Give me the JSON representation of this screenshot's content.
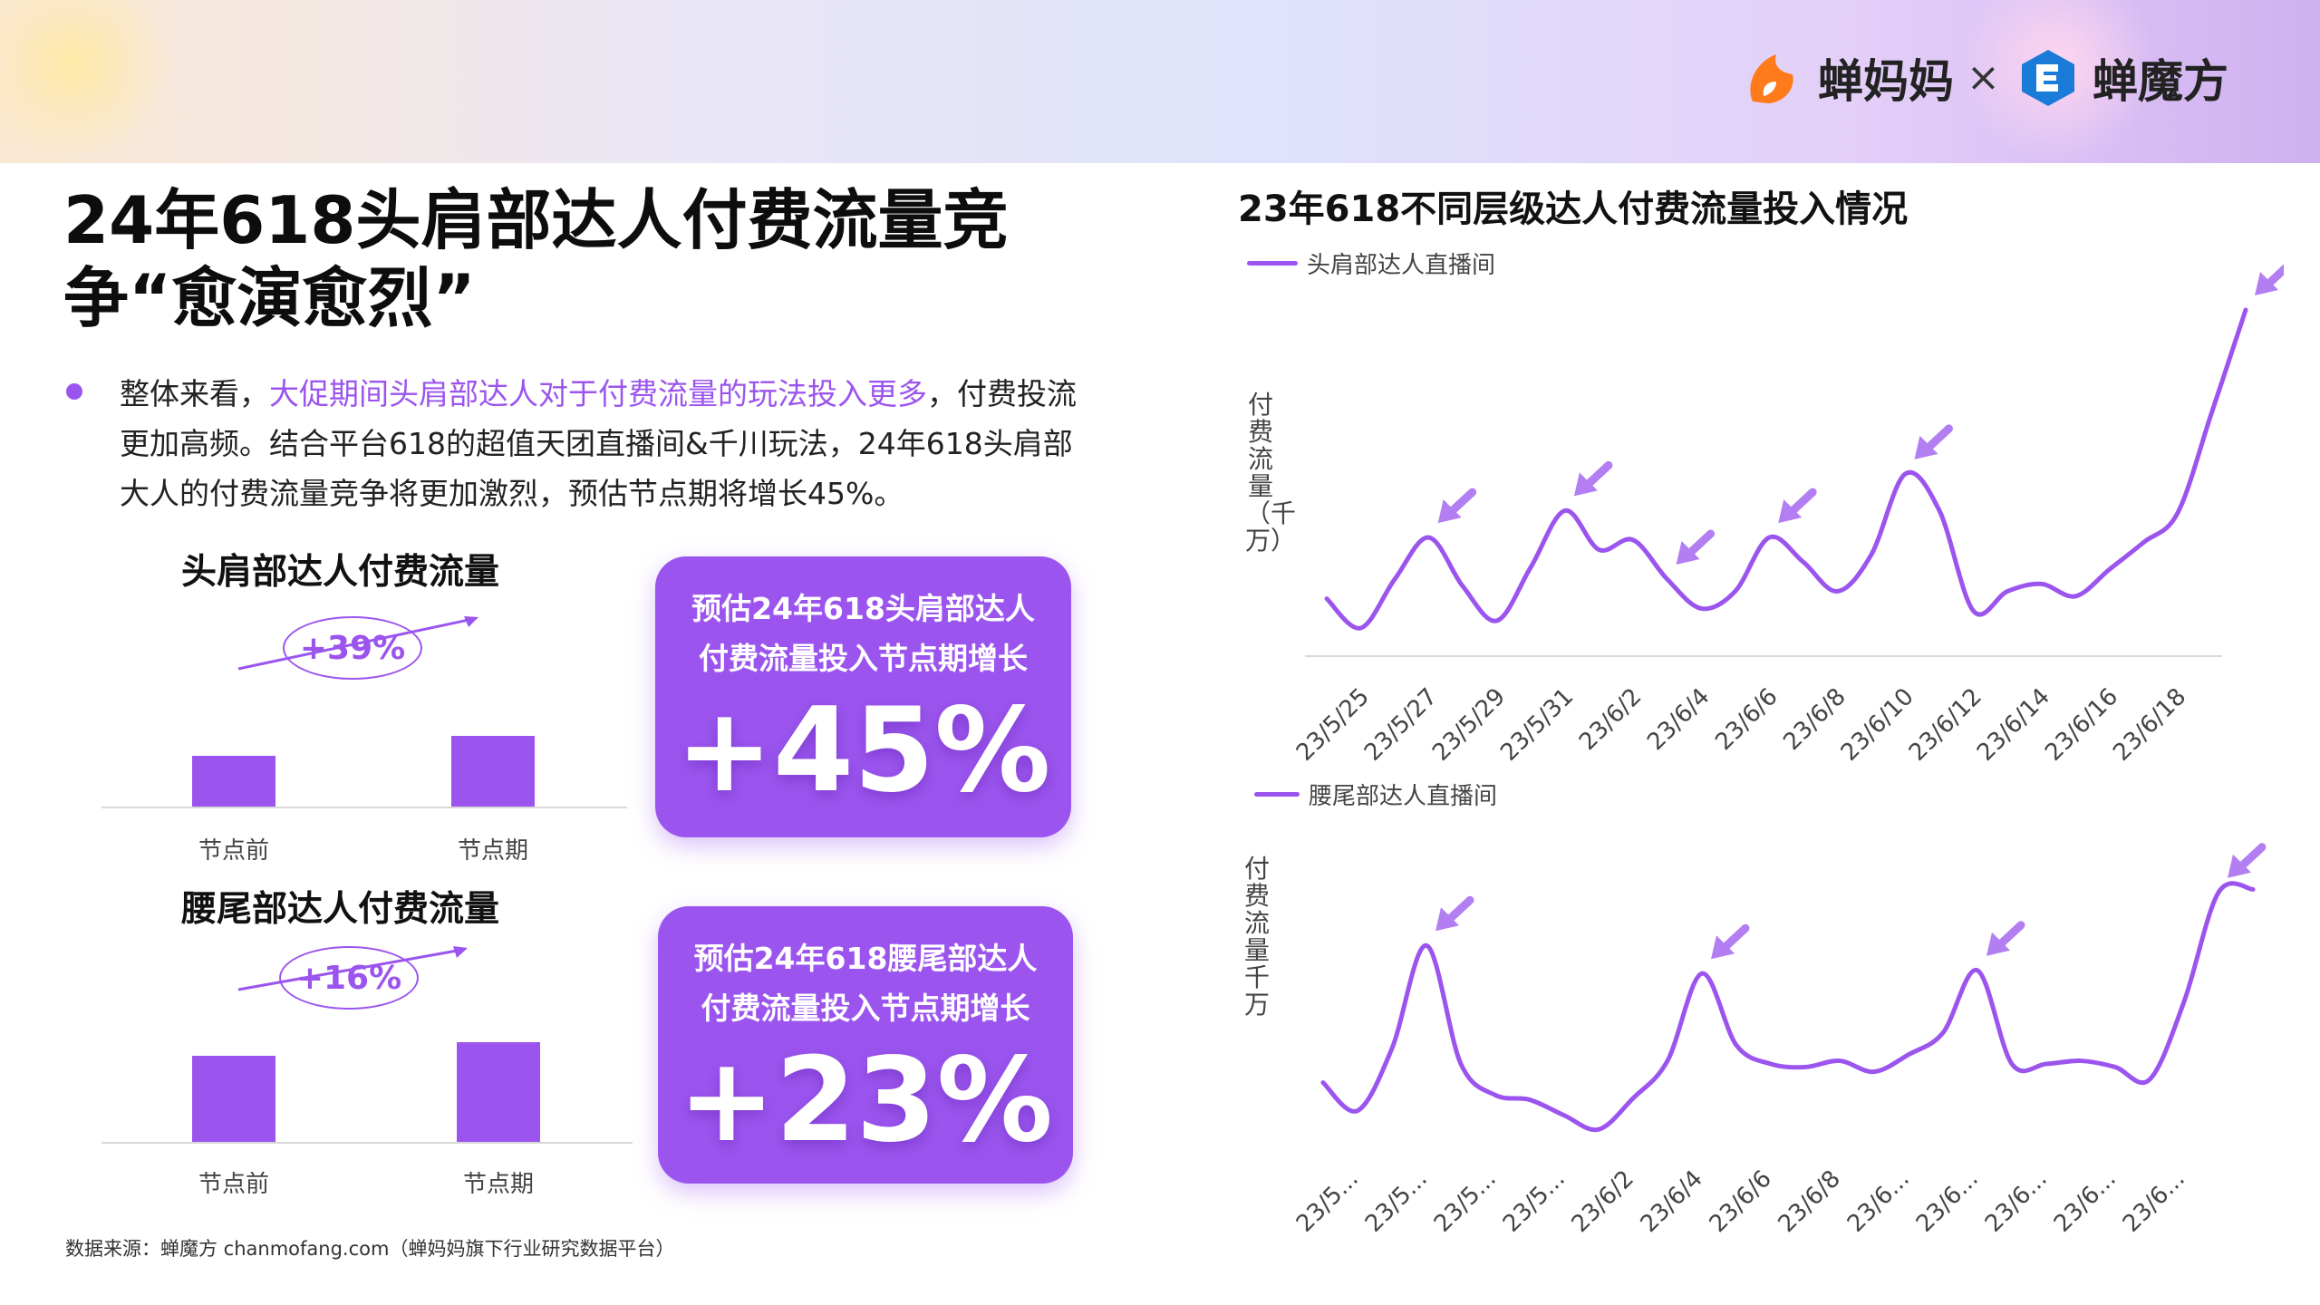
{
  "header": {
    "brand1": "蝉妈妈",
    "times": "×",
    "brand2": "蝉魔方",
    "brand_color": "#9b55ee"
  },
  "title": "24年618头肩部达人付费流量竞争“愈演愈烈”",
  "bullet": {
    "prefix": "整体来看，",
    "highlight": "大促期间头肩部达人对于付费流量的玩法投入更多",
    "suffix": "，付费投流更加高频。结合平台618的超值天团直播间&千川玩法，24年618头肩部大人的付费流量竞争将更加激烈，预估节点期将增长45%。"
  },
  "left_charts": [
    {
      "title": "头肩部达人付费流量",
      "change_label": "+39%",
      "categories": [
        "节点前",
        "节点期"
      ],
      "values": [
        1,
        1.39
      ],
      "card_text_line1": "预估24年618头肩部达人",
      "card_text_line2": "付费流量投入节点期增长",
      "card_value": "+45%"
    },
    {
      "title": "腰尾部达人付费流量",
      "change_label": "+16%",
      "categories": [
        "节点前",
        "节点期"
      ],
      "values": [
        1,
        1.16
      ],
      "card_text_line1": "预估24年618腰尾部达人",
      "card_text_line2": "付费流量投入节点期增长",
      "card_value": "+23%"
    }
  ],
  "source": "数据来源：蝉魔方 chanmofang.com（蝉妈妈旗下行业研究数据平台）",
  "chart_title": "23年618不同层级达人付费流量投入情况",
  "chart_data": [
    {
      "type": "bar",
      "title": "头肩部达人付费流量",
      "categories": [
        "节点前",
        "节点期"
      ],
      "values": [
        1,
        1.39
      ],
      "annotation": "+39%"
    },
    {
      "type": "bar",
      "title": "腰尾部达人付费流量",
      "categories": [
        "节点前",
        "节点期"
      ],
      "values": [
        1,
        1.16
      ],
      "annotation": "+16%"
    },
    {
      "type": "line",
      "series": [
        {
          "name": "头肩部达人直播间",
          "values": [
            22,
            10,
            30,
            47,
            27,
            13,
            35,
            58,
            42,
            46,
            30,
            18,
            25,
            47,
            37,
            25,
            40,
            73,
            58,
            17,
            25,
            28,
            23,
            34,
            45,
            57,
            98,
            140
          ]
        }
      ],
      "x": [
        "23/5/25",
        "23/5/26",
        "23/5/27",
        "23/5/28",
        "23/5/29",
        "23/5/30",
        "23/5/31",
        "23/6/1",
        "23/6/2",
        "23/6/3",
        "23/6/4",
        "23/6/5",
        "23/6/6",
        "23/6/7",
        "23/6/8",
        "23/6/9",
        "23/6/10",
        "23/6/11",
        "23/6/12",
        "23/6/13",
        "23/6/14",
        "23/6/15",
        "23/6/16",
        "23/6/17",
        "23/6/18",
        "23/6/19",
        "23/6/20",
        "23/6/21"
      ],
      "x_tick_labels": [
        "23/5/25",
        "23/5/27",
        "23/5/29",
        "23/5/31",
        "23/6/2",
        "23/6/4",
        "23/6/6",
        "23/6/8",
        "23/6/10",
        "23/6/12",
        "23/6/14",
        "23/6/16",
        "23/6/18"
      ],
      "ylabel": "付费流量（千万）",
      "arrow_at": [
        "23/5/28",
        "23/6/1",
        "23/6/4",
        "23/6/7",
        "23/6/11",
        "23/6/21"
      ]
    },
    {
      "type": "line",
      "series": [
        {
          "name": "腰尾部达人直播间",
          "values": [
            38,
            20,
            60,
            126,
            50,
            30,
            27,
            17,
            8,
            28,
            52,
            108,
            62,
            50,
            48,
            52,
            45,
            56,
            70,
            110,
            50,
            50,
            52,
            48,
            40,
            90,
            160,
            162
          ]
        }
      ],
      "x": [
        "23/5/25",
        "23/5/26",
        "23/5/27",
        "23/5/28",
        "23/5/29",
        "23/5/30",
        "23/5/31",
        "23/6/1",
        "23/6/2",
        "23/6/3",
        "23/6/4",
        "23/6/5",
        "23/6/6",
        "23/6/7",
        "23/6/8",
        "23/6/9",
        "23/6/10",
        "23/6/11",
        "23/6/12",
        "23/6/13",
        "23/6/14",
        "23/6/15",
        "23/6/16",
        "23/6/17",
        "23/6/18",
        "23/6/19",
        "23/6/20",
        "23/6/21"
      ],
      "x_tick_labels": [
        "23/5...",
        "23/5...",
        "23/5...",
        "23/5...",
        "23/6/2",
        "23/6/4",
        "23/6/6",
        "23/6/8",
        "23/6...",
        "23/6...",
        "23/6...",
        "23/6...",
        "23/6..."
      ],
      "ylabel": "付费流量千万",
      "arrow_at": [
        "23/5/28",
        "23/6/5",
        "23/6/13",
        "23/6/20"
      ]
    }
  ]
}
